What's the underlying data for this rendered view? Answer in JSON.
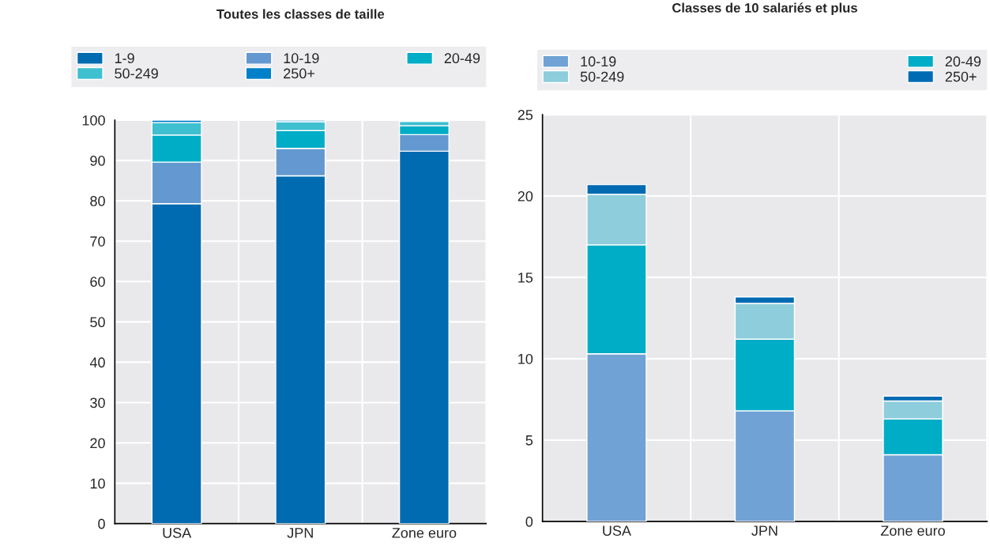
{
  "chart_data": [
    {
      "type": "bar",
      "title": "Toutes les classes de taille",
      "categories": [
        "USA",
        "JPN",
        "Zone euro"
      ],
      "stacked": true,
      "legend": "top",
      "grid": true,
      "ylim": [
        0,
        100
      ],
      "yticks": [
        0,
        10,
        20,
        30,
        40,
        50,
        60,
        70,
        80,
        90,
        100
      ],
      "series": [
        {
          "name": "1-9",
          "color": "#006bb0",
          "values": [
            79.3,
            86.2,
            92.3
          ]
        },
        {
          "name": "10-19",
          "color": "#6399d0",
          "values": [
            10.3,
            6.8,
            4.1
          ]
        },
        {
          "name": "20-49",
          "color": "#00adc6",
          "values": [
            6.7,
            4.4,
            2.2
          ]
        },
        {
          "name": "50-249",
          "color": "#3fc0d0",
          "values": [
            3.1,
            2.2,
            1.1
          ]
        },
        {
          "name": "250+",
          "color": "#0080c8",
          "values": [
            0.6,
            0.4,
            0.3
          ]
        }
      ]
    },
    {
      "type": "bar",
      "title": "Classes de 10 salariés et plus",
      "categories": [
        "USA",
        "JPN",
        "Zone euro"
      ],
      "stacked": true,
      "legend": "top",
      "grid": true,
      "ylim": [
        0,
        25
      ],
      "yticks": [
        0,
        5,
        10,
        15,
        20,
        25
      ],
      "series": [
        {
          "name": "10-19",
          "color": "#70a2d5",
          "values": [
            10.3,
            6.8,
            4.1
          ]
        },
        {
          "name": "20-49",
          "color": "#00adc6",
          "values": [
            6.7,
            4.4,
            2.2
          ]
        },
        {
          "name": "50-249",
          "color": "#8dcddc",
          "values": [
            3.1,
            2.2,
            1.1
          ]
        },
        {
          "name": "250+",
          "color": "#006bb3",
          "values": [
            0.6,
            0.4,
            0.3
          ]
        }
      ]
    }
  ]
}
